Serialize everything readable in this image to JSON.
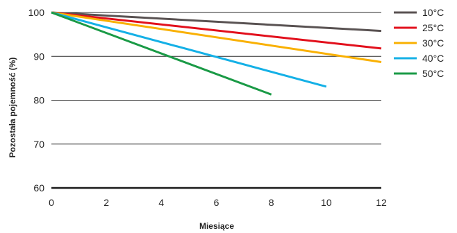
{
  "chart_data": {
    "type": "line",
    "title": "",
    "xlabel": "Miesiące",
    "ylabel": "Pozostała pojemność (%)",
    "xlim": [
      0,
      12
    ],
    "ylim": [
      60,
      100
    ],
    "xticks": [
      0,
      2,
      4,
      6,
      8,
      10,
      12
    ],
    "yticks": [
      60,
      70,
      80,
      90,
      100
    ],
    "grid": "horizontal",
    "legend_position": "right",
    "series": [
      {
        "name": "10°C",
        "color": "#595252",
        "x": [
          0,
          12
        ],
        "y": [
          100,
          95.8
        ]
      },
      {
        "name": "25°C",
        "color": "#e2101c",
        "x": [
          0,
          12
        ],
        "y": [
          100,
          91.8
        ]
      },
      {
        "name": "30°C",
        "color": "#f9b000",
        "x": [
          0,
          12
        ],
        "y": [
          100,
          88.7
        ]
      },
      {
        "name": "40°C",
        "color": "#14b0e6",
        "x": [
          0,
          10
        ],
        "y": [
          100,
          83.1
        ]
      },
      {
        "name": "50°C",
        "color": "#1a9a46",
        "x": [
          0,
          8
        ],
        "y": [
          100,
          81.3
        ]
      }
    ]
  }
}
